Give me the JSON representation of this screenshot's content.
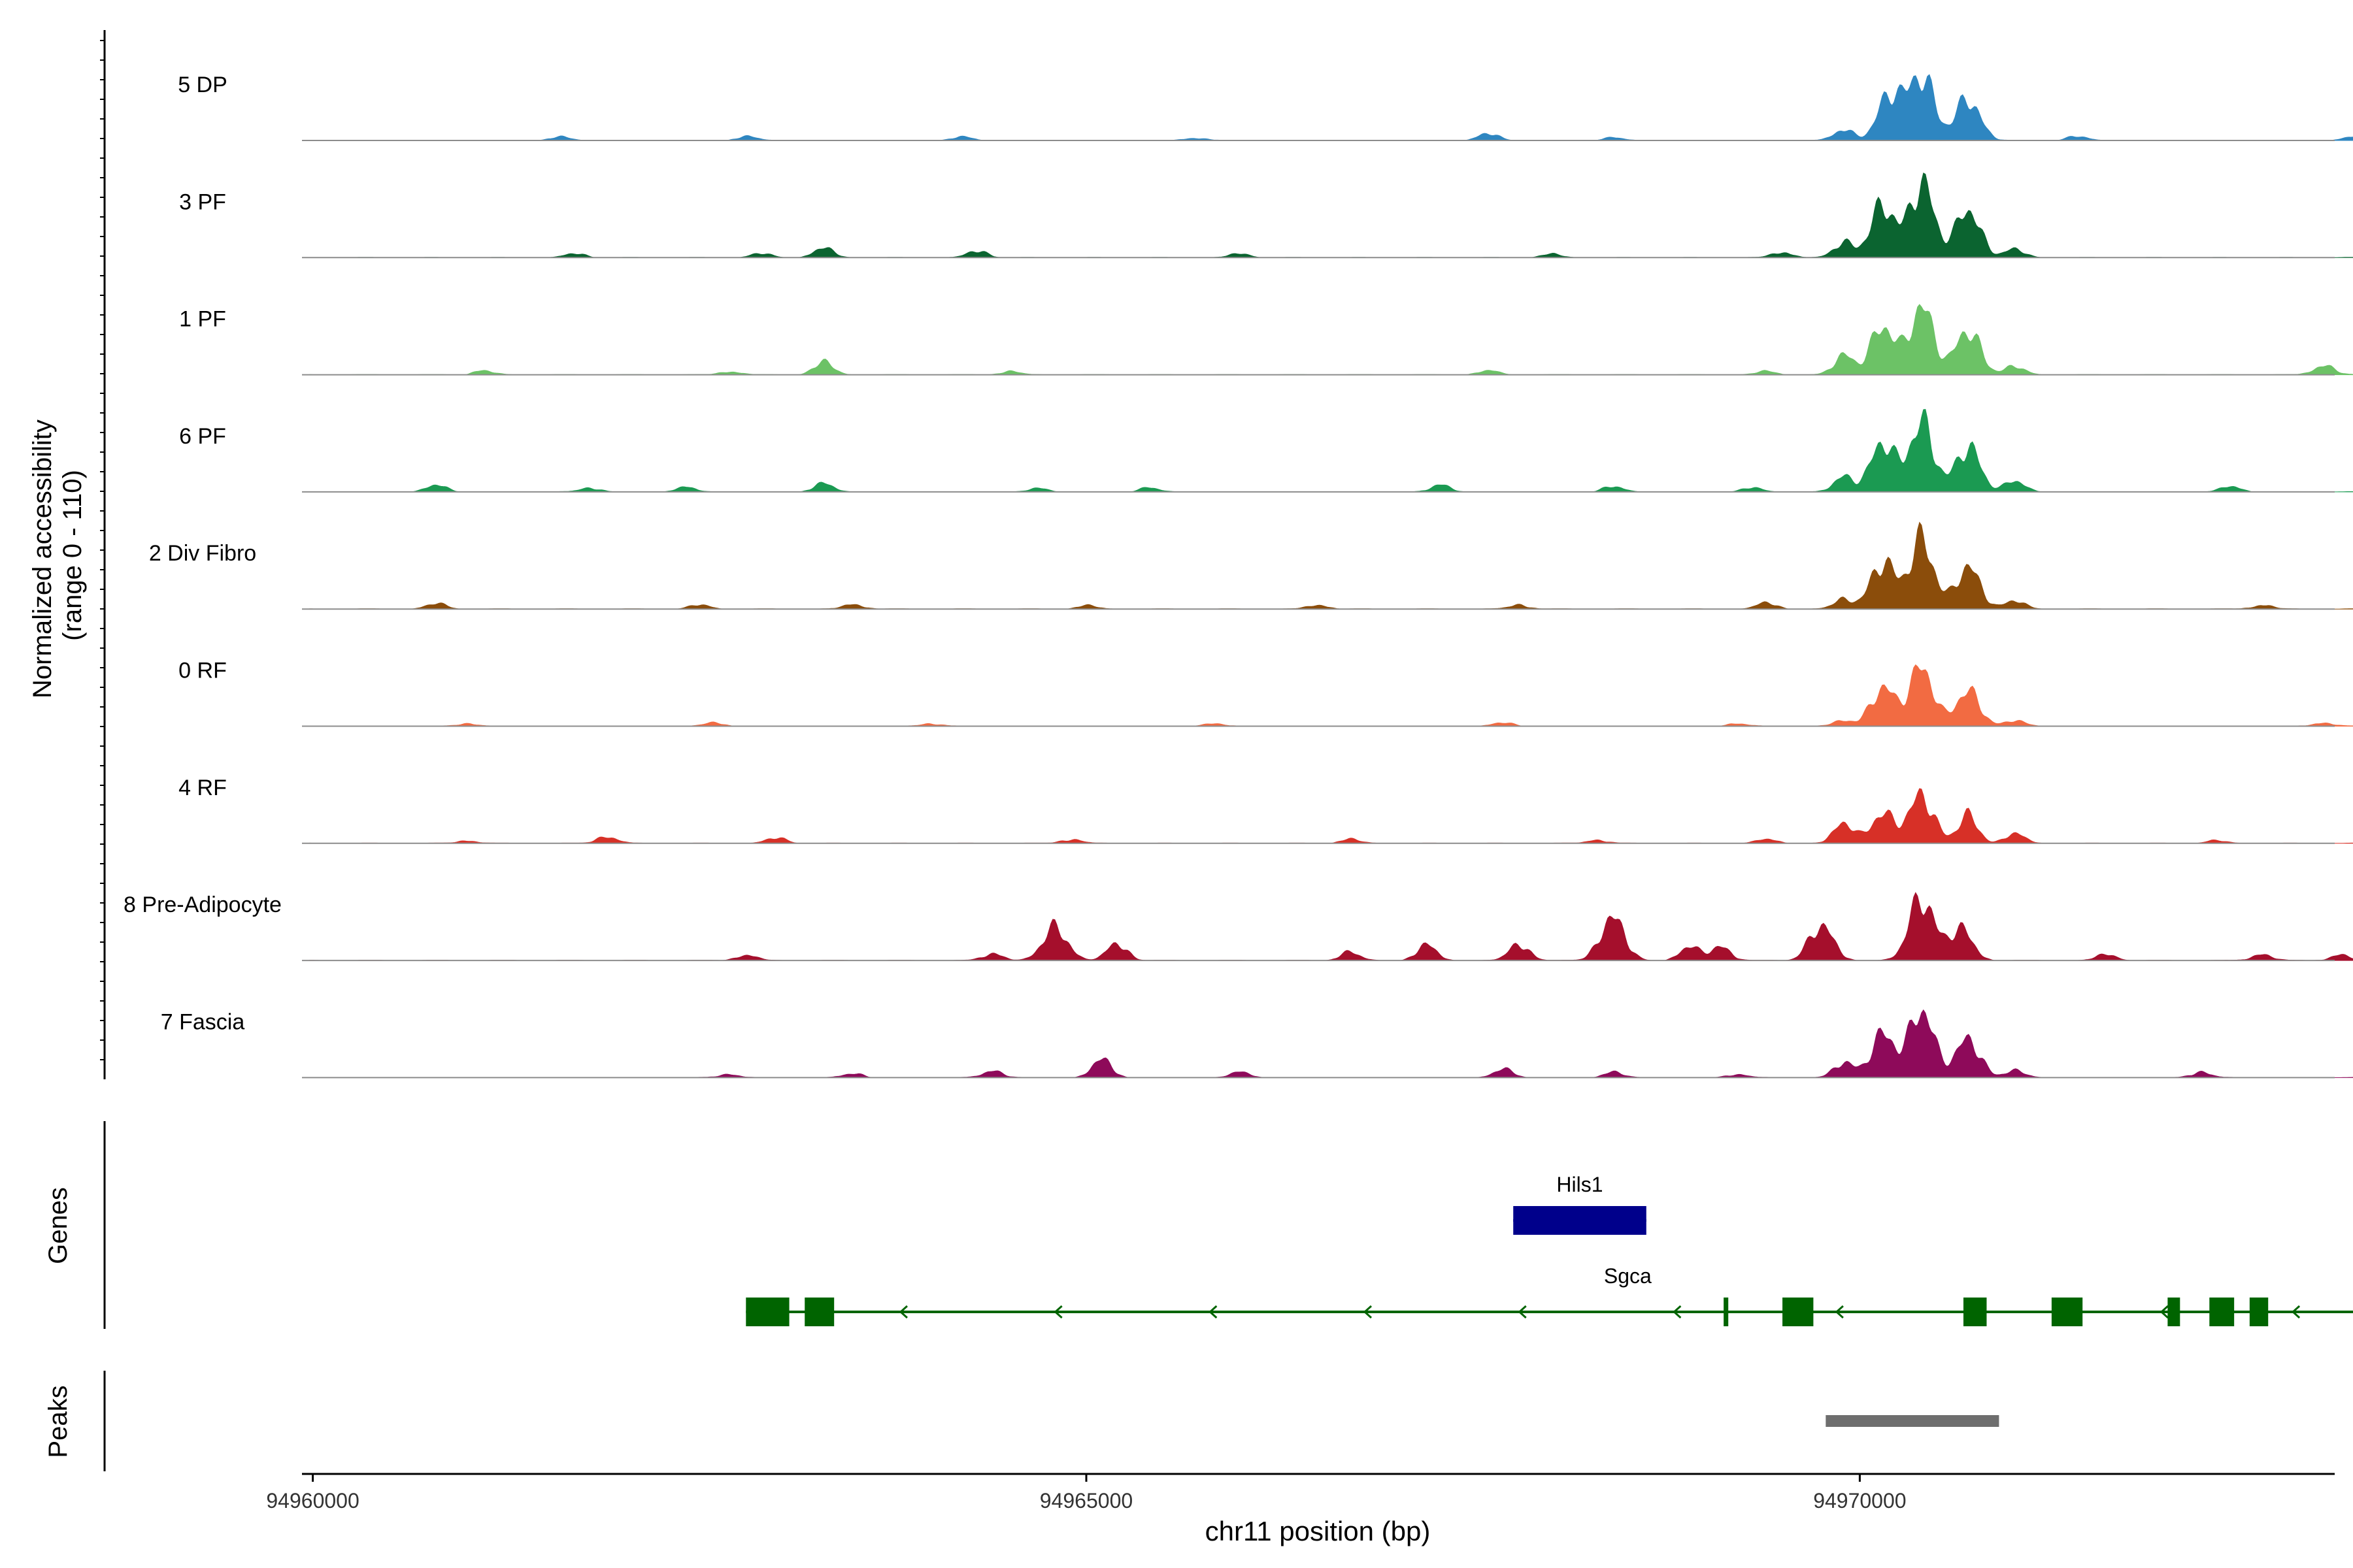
{
  "chart_data": {
    "type": "area",
    "x_range": [
      94959930,
      94973070
    ],
    "x_ticks": [
      "94960000",
      "94965000",
      "94970000"
    ],
    "x_tick_values": [
      94960000,
      94965000,
      94970000
    ],
    "xlabel": "chr11 position (bp)",
    "ylabel_line1": "Normalized accessibility",
    "ylabel_line2": "(range 0 - 110)",
    "ylim": [
      0,
      110
    ],
    "track_start": 94959980,
    "track_end": 94973470,
    "series": [
      {
        "name": "5 DP",
        "color": "#2E86C1",
        "peaks": [
          [
            94970400,
            95
          ],
          [
            94970200,
            68
          ],
          [
            94970700,
            60
          ],
          [
            94969900,
            16
          ],
          [
            94967600,
            10
          ],
          [
            94971400,
            6
          ],
          [
            94973200,
            6
          ],
          [
            94961600,
            5
          ],
          [
            94962800,
            6
          ],
          [
            94964200,
            5
          ],
          [
            94965700,
            4
          ],
          [
            94968400,
            4
          ]
        ]
      },
      {
        "name": "3 PF",
        "color": "#0B6430",
        "peaks": [
          [
            94970400,
            108
          ],
          [
            94970150,
            75
          ],
          [
            94970700,
            70
          ],
          [
            94969900,
            22
          ],
          [
            94971000,
            12
          ],
          [
            94963300,
            14
          ],
          [
            94964300,
            10
          ],
          [
            94961700,
            6
          ],
          [
            94962900,
            6
          ],
          [
            94966000,
            6
          ],
          [
            94968000,
            5
          ],
          [
            94969500,
            8
          ]
        ]
      },
      {
        "name": "1 PF",
        "color": "#6CC266",
        "peaks": [
          [
            94970400,
            98
          ],
          [
            94970150,
            70
          ],
          [
            94970700,
            65
          ],
          [
            94969900,
            28
          ],
          [
            94971000,
            12
          ],
          [
            94963300,
            18
          ],
          [
            94973000,
            14
          ],
          [
            94961100,
            6
          ],
          [
            94962700,
            5
          ],
          [
            94964500,
            5
          ],
          [
            94967600,
            6
          ],
          [
            94969400,
            5
          ]
        ]
      },
      {
        "name": "6 PF",
        "color": "#1B9A52",
        "peaks": [
          [
            94970400,
            100
          ],
          [
            94970150,
            72
          ],
          [
            94970700,
            65
          ],
          [
            94969900,
            22
          ],
          [
            94971000,
            16
          ],
          [
            94960800,
            10
          ],
          [
            94963300,
            12
          ],
          [
            94972400,
            8
          ],
          [
            94961800,
            6
          ],
          [
            94962400,
            7
          ],
          [
            94964700,
            5
          ],
          [
            94965400,
            6
          ],
          [
            94967300,
            10
          ],
          [
            94968400,
            8
          ],
          [
            94969300,
            6
          ]
        ]
      },
      {
        "name": "2 Div Fibro",
        "color": "#8B4D0B",
        "peaks": [
          [
            94970400,
            100
          ],
          [
            94970150,
            68
          ],
          [
            94970700,
            60
          ],
          [
            94969900,
            14
          ],
          [
            94971000,
            12
          ],
          [
            94960800,
            8
          ],
          [
            94962500,
            6
          ],
          [
            94963500,
            7
          ],
          [
            94965000,
            5
          ],
          [
            94966500,
            6
          ],
          [
            94967800,
            6
          ],
          [
            94969400,
            9
          ],
          [
            94972600,
            6
          ]
        ]
      },
      {
        "name": "0 RF",
        "color": "#F26B42",
        "peaks": [
          [
            94970400,
            85
          ],
          [
            94970150,
            55
          ],
          [
            94970700,
            50
          ],
          [
            94969900,
            8
          ],
          [
            94971000,
            8
          ],
          [
            94961000,
            4
          ],
          [
            94962600,
            5
          ],
          [
            94964000,
            4
          ],
          [
            94965800,
            4
          ],
          [
            94967700,
            5
          ],
          [
            94969200,
            4
          ],
          [
            94973000,
            5
          ]
        ]
      },
      {
        "name": "4 RF",
        "color": "#D73027",
        "peaks": [
          [
            94970400,
            70
          ],
          [
            94970150,
            42
          ],
          [
            94970700,
            40
          ],
          [
            94969900,
            30
          ],
          [
            94971000,
            14
          ],
          [
            94961000,
            4
          ],
          [
            94961900,
            10
          ],
          [
            94963000,
            8
          ],
          [
            94964900,
            6
          ],
          [
            94966700,
            6
          ],
          [
            94968300,
            5
          ],
          [
            94969400,
            6
          ],
          [
            94972300,
            4
          ]
        ]
      },
      {
        "name": "8 Pre-Adipocyte",
        "color": "#A50F2C",
        "peaks": [
          [
            94970400,
            92
          ],
          [
            94970650,
            45
          ],
          [
            94968400,
            62
          ],
          [
            94964800,
            48
          ],
          [
            94965200,
            25
          ],
          [
            94967200,
            22
          ],
          [
            94967800,
            24
          ],
          [
            94969100,
            20
          ],
          [
            94969750,
            50
          ],
          [
            94968900,
            20
          ],
          [
            94962800,
            8
          ],
          [
            94964400,
            10
          ],
          [
            94966700,
            12
          ],
          [
            94971600,
            9
          ],
          [
            94972600,
            9
          ],
          [
            94973100,
            8
          ]
        ]
      },
      {
        "name": "7 Fascia",
        "color": "#8E0A5A",
        "peaks": [
          [
            94970400,
            100
          ],
          [
            94970150,
            62
          ],
          [
            94970700,
            55
          ],
          [
            94969900,
            22
          ],
          [
            94971000,
            10
          ],
          [
            94965100,
            26
          ],
          [
            94964400,
            10
          ],
          [
            94967700,
            12
          ],
          [
            94966000,
            8
          ],
          [
            94968400,
            8
          ],
          [
            94962700,
            5
          ],
          [
            94963500,
            6
          ],
          [
            94972200,
            8
          ],
          [
            94969200,
            5
          ]
        ]
      }
    ],
    "genes_label": "Genes",
    "genes": [
      {
        "name": "Hils1",
        "color": "#00008B",
        "start": 94967760,
        "end": 94968620,
        "exons": [
          [
            94967760,
            94968620
          ]
        ]
      },
      {
        "name": "Sgca",
        "color": "#006400",
        "strand": "-",
        "start": 94962800,
        "end": 94973470,
        "exons": [
          [
            94962800,
            94963080
          ],
          [
            94963180,
            94963370
          ],
          [
            94969120,
            94969150
          ],
          [
            94969500,
            94969700
          ],
          [
            94970670,
            94970820
          ],
          [
            94971240,
            94971440
          ],
          [
            94971990,
            94972070
          ],
          [
            94972260,
            94972420
          ],
          [
            94972520,
            94972640
          ]
        ]
      }
    ],
    "peaks_label": "Peaks",
    "peak_regions": [
      [
        94969780,
        94970900
      ]
    ]
  }
}
